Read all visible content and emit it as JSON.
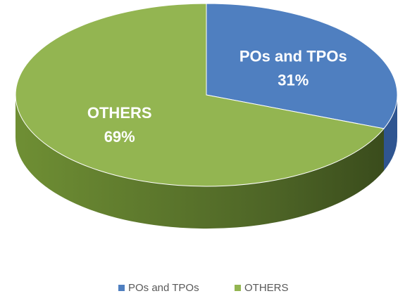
{
  "chart_data": {
    "type": "pie",
    "categories": [
      "POs and TPOs",
      "OTHERS"
    ],
    "values": [
      31,
      69
    ],
    "value_labels": [
      "31%",
      "69%"
    ],
    "colors": [
      "#4f7fc0",
      "#93b551"
    ],
    "side_colors": [
      "#2f5590",
      "#5f7a2e"
    ],
    "legend": "bottom"
  }
}
